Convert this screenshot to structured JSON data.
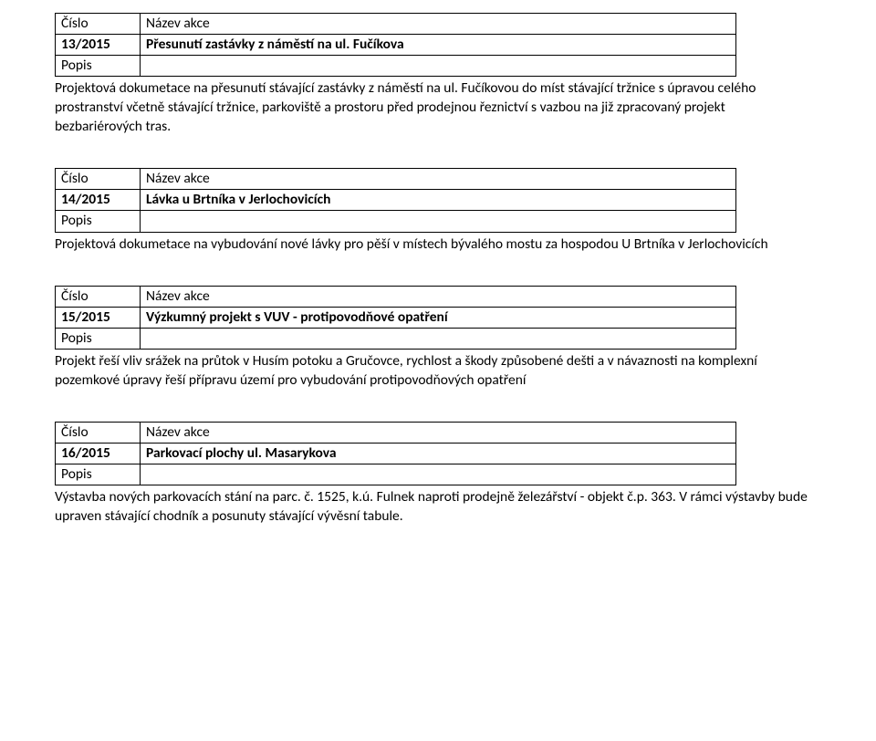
{
  "labels": {
    "number": "Číslo",
    "name": "Název akce",
    "desc": "Popis"
  },
  "items": [
    {
      "num": "13/2015",
      "title": "Přesunutí zastávky z náměstí na ul. Fučíkova",
      "desc": "Projektová dokumetace na přesunutí stávající zastávky z náměstí na ul. Fučíkovou do míst stávající tržnice s úpravou celého prostranství včetně stávající tržnice, parkoviště a prostoru před prodejnou řeznictví s vazbou na již zpracovaný projekt bezbariérových tras."
    },
    {
      "num": "14/2015",
      "title": "Lávka u Brtníka v Jerlochovicích",
      "desc": "Projektová dokumetace na vybudování nové lávky pro pěší v místech bývalého mostu za hospodou U Brtníka v Jerlochovicích"
    },
    {
      "num": "15/2015",
      "title": "Výzkumný projekt s VUV - protipovodňové opatření",
      "desc": "Projekt řeší vliv srážek na průtok v Husím potoku a Gručovce, rychlost a škody způsobené dešti a v návaznosti na komplexní pozemkové úpravy řeší přípravu území pro vybudování protipovodňových opatření"
    },
    {
      "num": "16/2015",
      "title": "Parkovací plochy ul. Masarykova",
      "desc": "Výstavba nových parkovacích stání na parc. č. 1525, k.ú. Fulnek naproti prodejně železářství - objekt č.p. 363. V rámci výstavby bude upraven stávající chodník a posunuty stávající vývěsní tabule."
    }
  ]
}
